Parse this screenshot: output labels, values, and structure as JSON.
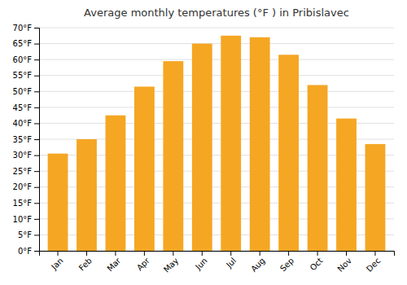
{
  "chart_data": {
    "type": "bar",
    "title": "Average monthly temperatures (°F ) in Pribislavec",
    "categories": [
      "Jan",
      "Feb",
      "Mar",
      "Apr",
      "May",
      "Jun",
      "Jul",
      "Aug",
      "Sep",
      "Oct",
      "Nov",
      "Dec"
    ],
    "values": [
      30.5,
      35.0,
      42.5,
      51.5,
      59.5,
      65.0,
      67.5,
      67.0,
      61.5,
      52.0,
      41.5,
      33.5
    ],
    "color": "#F5A623",
    "ylim": [
      0,
      70
    ],
    "yticks": [
      {
        "value": 0,
        "label": "0°F"
      },
      {
        "value": 5,
        "label": "5°F"
      },
      {
        "value": 10,
        "label": "10°F"
      },
      {
        "value": 15,
        "label": "15°F"
      },
      {
        "value": 20,
        "label": "20°F"
      },
      {
        "value": 25,
        "label": "25°F"
      },
      {
        "value": 30,
        "label": "30°F"
      },
      {
        "value": 35,
        "label": "35°F"
      },
      {
        "value": 40,
        "label": "40°F"
      },
      {
        "value": 45,
        "label": "45°F"
      },
      {
        "value": 50,
        "label": "50°F"
      },
      {
        "value": 55,
        "label": "55°F"
      },
      {
        "value": 60,
        "label": "60°F"
      },
      {
        "value": 65,
        "label": "65°F"
      },
      {
        "value": 70,
        "label": "70°F"
      }
    ],
    "grid": true
  }
}
